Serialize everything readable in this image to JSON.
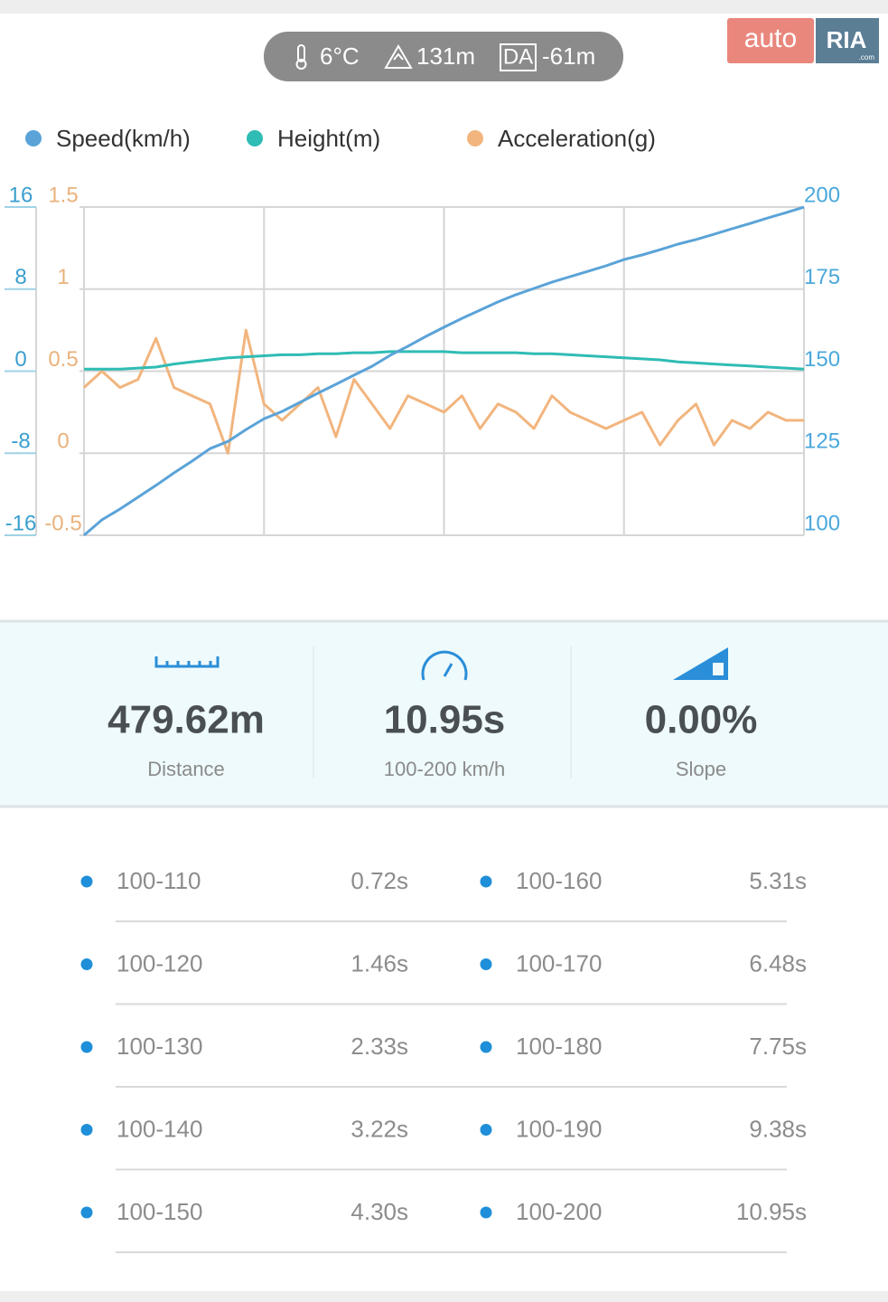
{
  "header": {
    "temperature": "6°C",
    "altitude": "131m",
    "da_badge": "DA",
    "density_altitude": "-61m"
  },
  "logo": {
    "brand": "auto",
    "ria": "RIA",
    "domain": ".com"
  },
  "chart_data": {
    "type": "line",
    "grid": true,
    "ylim": [
      -16,
      16
    ],
    "yticks": [
      -16,
      -8,
      0,
      8,
      16
    ],
    "ycolor": "#3a9fcf",
    "y2lim": [
      100,
      200
    ],
    "y2ticks": [
      100,
      125,
      150,
      175,
      200
    ],
    "y2color": "#4aa8dc",
    "y3lim": [
      -0.5,
      1.5
    ],
    "y3ticks": [
      -0.5,
      0,
      0.5,
      1,
      1.5
    ],
    "y3color": "#eab27c",
    "series": [
      {
        "name": "Speed(km/h)",
        "color": "#5aa3d8",
        "axis": "y2",
        "values": [
          100,
          104.7,
          108,
          111.6,
          115.2,
          119,
          122.6,
          126.4,
          128.6,
          132.2,
          135.5,
          137.7,
          140.5,
          143.3,
          146,
          148.8,
          151.5,
          154.8,
          157.6,
          160.6,
          163.4,
          166.1,
          168.6,
          171.1,
          173.3,
          175.2,
          177.1,
          178.8,
          180.4,
          182.1,
          184,
          185.4,
          187,
          188.7,
          190.1,
          191.7,
          193.4,
          195,
          196.7,
          198.3,
          200
        ]
      },
      {
        "name": "Height(m)",
        "color": "#2fbcb4",
        "axis": "y",
        "values": [
          0.2,
          0.2,
          0.2,
          0.3,
          0.4,
          0.7,
          0.9,
          1.1,
          1.3,
          1.4,
          1.5,
          1.6,
          1.6,
          1.7,
          1.7,
          1.8,
          1.8,
          1.9,
          1.9,
          1.9,
          1.9,
          1.8,
          1.8,
          1.8,
          1.8,
          1.7,
          1.7,
          1.6,
          1.5,
          1.4,
          1.3,
          1.2,
          1.1,
          0.9,
          0.8,
          0.7,
          0.6,
          0.5,
          0.4,
          0.3,
          0.2
        ]
      },
      {
        "name": "Acceleration(g)",
        "color": "#f2b57e",
        "axis": "y3",
        "values": [
          0.4,
          0.5,
          0.4,
          0.45,
          0.7,
          0.4,
          0.35,
          0.3,
          0.0,
          0.75,
          0.3,
          0.2,
          0.3,
          0.4,
          0.1,
          0.45,
          0.3,
          0.15,
          0.35,
          0.3,
          0.25,
          0.35,
          0.15,
          0.3,
          0.25,
          0.15,
          0.35,
          0.25,
          0.2,
          0.15,
          0.2,
          0.25,
          0.05,
          0.2,
          0.3,
          0.05,
          0.2,
          0.15,
          0.25,
          0.2,
          0.2
        ]
      }
    ]
  },
  "summary": [
    {
      "value": "479.62m",
      "label": "Distance"
    },
    {
      "value": "10.95s",
      "label": "100-200 km/h"
    },
    {
      "value": "0.00%",
      "label": "Slope"
    }
  ],
  "splits": [
    {
      "range": "100-110",
      "time": "0.72s"
    },
    {
      "range": "100-120",
      "time": "1.46s"
    },
    {
      "range": "100-130",
      "time": "2.33s"
    },
    {
      "range": "100-140",
      "time": "3.22s"
    },
    {
      "range": "100-150",
      "time": "4.30s"
    },
    {
      "range": "100-160",
      "time": "5.31s"
    },
    {
      "range": "100-170",
      "time": "6.48s"
    },
    {
      "range": "100-180",
      "time": "7.75s"
    },
    {
      "range": "100-190",
      "time": "9.38s"
    },
    {
      "range": "100-200",
      "time": "10.95s"
    }
  ]
}
